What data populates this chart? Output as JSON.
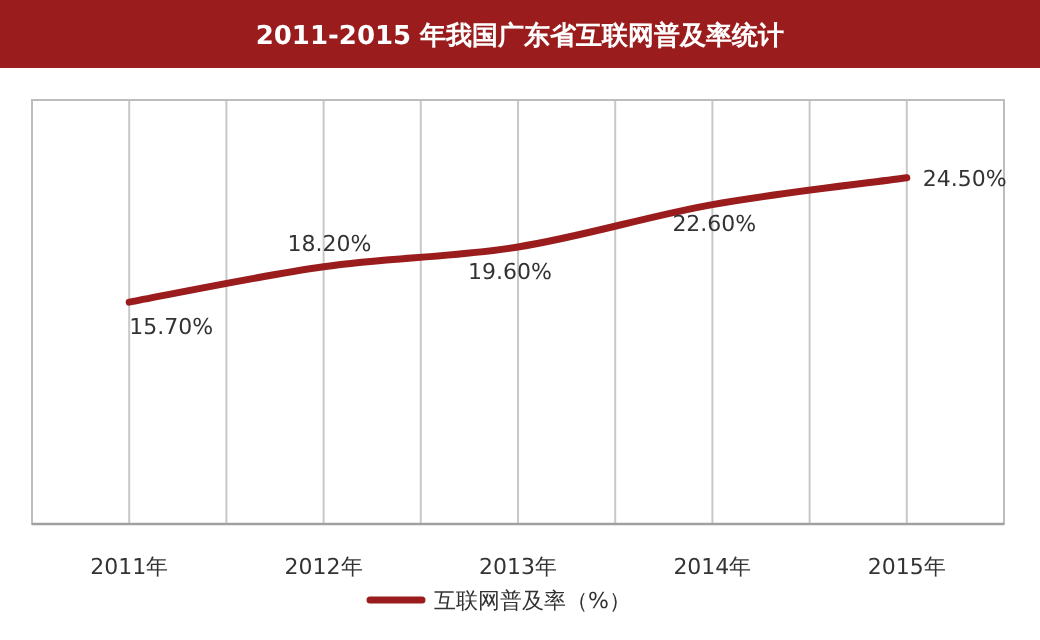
{
  "chart_data": {
    "type": "line",
    "title": "2011-2015 年我国广东省互联网普及率统计",
    "categories": [
      "2011年",
      "2012年",
      "2013年",
      "2014年",
      "2015年"
    ],
    "series": [
      {
        "name": "互联网普及率（%）",
        "color": "#9b1c1c",
        "values": [
          15.7,
          18.2,
          19.6,
          22.6,
          24.5
        ],
        "value_labels": [
          "15.70%",
          "18.20%",
          "19.60%",
          "22.60%",
          "24.50%"
        ]
      }
    ],
    "ylim": [
      0,
      30
    ],
    "tick_labels": "x",
    "grid": "x",
    "legend": "bottom",
    "marker": "none",
    "line_style": "solid"
  }
}
